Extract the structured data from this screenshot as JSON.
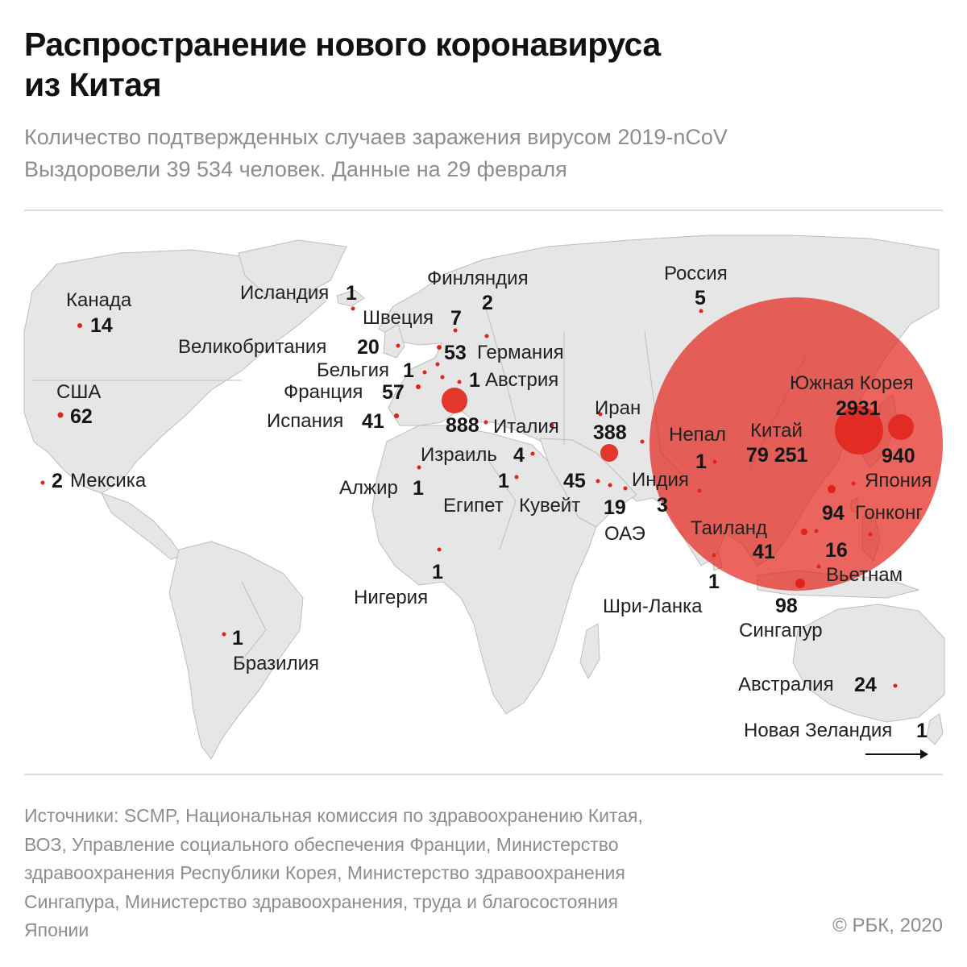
{
  "header": {
    "title_line1": "Распространение нового коронавируса",
    "title_line2": "из Китая",
    "subtitle_line1": "Количество подтвержденных случаев заражения вирусом 2019-nCoV",
    "subtitle_line2": "Выздоровели 39 534 человек. Данные на 29 февраля"
  },
  "colors": {
    "marker": "#e2231a",
    "land": "#e6e6e6",
    "border": "#bdbdbd",
    "text_muted": "#8d8d8d",
    "rule": "#dcdcdc"
  },
  "map": {
    "countries": [
      {
        "name": "Канада",
        "cases": "14"
      },
      {
        "name": "США",
        "cases": "62"
      },
      {
        "name": "Мексика",
        "cases": "2"
      },
      {
        "name": "Бразилия",
        "cases": "1"
      },
      {
        "name": "Исландия",
        "cases": "1"
      },
      {
        "name": "Великобритания",
        "cases": "20"
      },
      {
        "name": "Бельгия",
        "cases": "1"
      },
      {
        "name": "Франция",
        "cases": "57"
      },
      {
        "name": "Испания",
        "cases": "41"
      },
      {
        "name": "Финляндия",
        "cases": "2"
      },
      {
        "name": "Швеция",
        "cases": "7"
      },
      {
        "name": "Германия",
        "cases": "53"
      },
      {
        "name": "Австрия",
        "cases": "1"
      },
      {
        "name": "Италия",
        "cases": "888"
      },
      {
        "name": "Израиль",
        "cases": "4"
      },
      {
        "name": "Алжир",
        "cases": "1"
      },
      {
        "name": "Египет",
        "cases": "1"
      },
      {
        "name": "Кувейт",
        "cases": "45"
      },
      {
        "name": "Нигерия",
        "cases": "1"
      },
      {
        "name": "Иран",
        "cases": "388"
      },
      {
        "name": "ОАЭ",
        "cases": "19"
      },
      {
        "name": "Индия",
        "cases": "3"
      },
      {
        "name": "Непал",
        "cases": "1"
      },
      {
        "name": "Шри-Ланка",
        "cases": "1"
      },
      {
        "name": "Россия",
        "cases": "5"
      },
      {
        "name": "Китай",
        "cases": "79 251"
      },
      {
        "name": "Южная Корея",
        "cases": "2931"
      },
      {
        "name": "Япония",
        "cases": "940"
      },
      {
        "name": "Гонконг",
        "cases": "94"
      },
      {
        "name": "Вьетнам",
        "cases": "16"
      },
      {
        "name": "Таиланд",
        "cases": "41"
      },
      {
        "name": "Сингапур",
        "cases": "98"
      },
      {
        "name": "Австралия",
        "cases": "24"
      },
      {
        "name": "Новая Зеландия",
        "cases": "1"
      }
    ]
  },
  "footer": {
    "sources_lines": [
      "Источники: SCMP, Национальная комиссия по здравоохранению Китая,",
      "ВОЗ, Управление социального обеспечения Франции, Министерство",
      "здравоохранения Республики Корея, Министерство здравоохранения",
      "Сингапура, Министерство здравоохранения, труда и благосостояния",
      "Японии"
    ],
    "copyright": "© РБК, 2020"
  }
}
